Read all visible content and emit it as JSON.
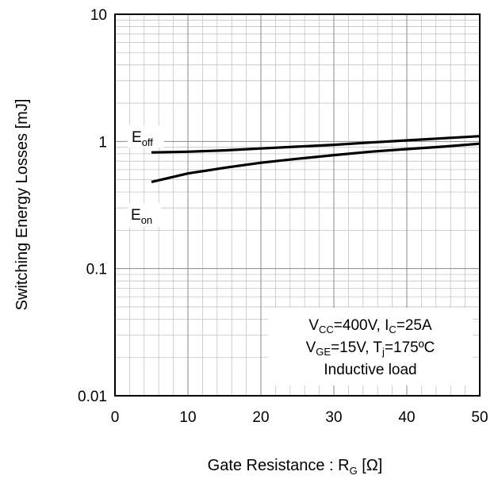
{
  "chart_data": {
    "type": "line",
    "xlabel": {
      "main": "Gate Resistance : R",
      "sub": "G",
      "unit": " [Ω]"
    },
    "ylabel": "Switching Energy Losses [mJ]",
    "xlim": [
      0,
      50
    ],
    "ylim": [
      0.01,
      10
    ],
    "yscale": "log",
    "grid": true,
    "x_ticks": [
      "0",
      "10",
      "20",
      "30",
      "40",
      "50"
    ],
    "y_ticks": [
      "0.01",
      "0.1",
      "1",
      "10"
    ],
    "series": [
      {
        "name": {
          "main": "E",
          "sub": "off"
        },
        "x": [
          5,
          10,
          15,
          20,
          25,
          30,
          35,
          40,
          45,
          50
        ],
        "y": [
          0.82,
          0.83,
          0.85,
          0.88,
          0.91,
          0.94,
          0.98,
          1.02,
          1.06,
          1.1
        ]
      },
      {
        "name": {
          "main": "E",
          "sub": "on"
        },
        "x": [
          5,
          10,
          15,
          20,
          25,
          30,
          35,
          40,
          45,
          50
        ],
        "y": [
          0.48,
          0.56,
          0.62,
          0.68,
          0.73,
          0.78,
          0.83,
          0.87,
          0.91,
          0.96
        ]
      }
    ],
    "annotation": [
      {
        "parts": [
          {
            "t": "V"
          },
          {
            "t": "CC",
            "sub": true
          },
          {
            "t": "=400V, I"
          },
          {
            "t": "C",
            "sub": true
          },
          {
            "t": "=25A"
          }
        ]
      },
      {
        "parts": [
          {
            "t": "V"
          },
          {
            "t": "GE",
            "sub": true
          },
          {
            "t": "=15V, T"
          },
          {
            "t": "j",
            "sub": true
          },
          {
            "t": "=175ºC"
          }
        ]
      },
      {
        "parts": [
          {
            "t": "Inductive load"
          }
        ]
      }
    ]
  }
}
